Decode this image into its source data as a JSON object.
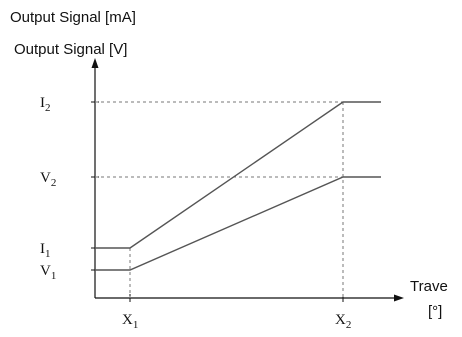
{
  "titles": {
    "line1": "Output Signal [mA]",
    "line2": "Output Signal [V]"
  },
  "chart_data": {
    "type": "line",
    "title": "",
    "xlabel": "Trave",
    "xunit": "[°]",
    "ylabel": "Output Signal",
    "x_ticks": [
      {
        "key": "X1",
        "label": "X",
        "sub": "1"
      },
      {
        "key": "X2",
        "label": "X",
        "sub": "2"
      }
    ],
    "y_ticks": [
      {
        "key": "I2",
        "label": "I",
        "sub": "2"
      },
      {
        "key": "V2",
        "label": "V",
        "sub": "2"
      },
      {
        "key": "I1",
        "label": "I",
        "sub": "1"
      },
      {
        "key": "V1",
        "label": "V",
        "sub": "1"
      }
    ],
    "series": [
      {
        "points": [
          [
            "X0",
            "I1"
          ],
          [
            "X1",
            "I1"
          ],
          [
            "X2",
            "I2"
          ],
          [
            "Xend",
            "I2"
          ]
        ]
      },
      {
        "points": [
          [
            "X0",
            "V1"
          ],
          [
            "X1",
            "V1"
          ],
          [
            "X2",
            "V2"
          ],
          [
            "Xend",
            "V2"
          ]
        ]
      }
    ],
    "guides": [
      {
        "from": "I2",
        "to": "X2",
        "style": "dashed"
      },
      {
        "from": "V2",
        "to": "X2",
        "style": "dashed"
      }
    ],
    "grid": false,
    "legend": "none"
  },
  "colors": {
    "axis": "#111111",
    "line": "#555555",
    "guide": "#777777"
  }
}
